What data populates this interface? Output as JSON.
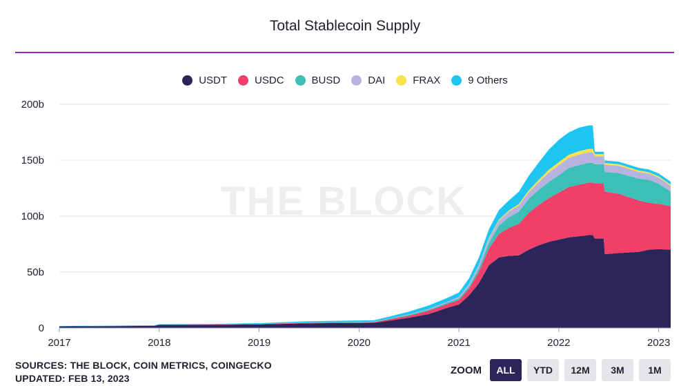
{
  "header": {
    "title": "Total Stablecoin Supply"
  },
  "watermark": "THE BLOCK",
  "footer": {
    "sources": "SOURCES: THE BLOCK, COIN METRICS, COINGECKO",
    "updated": "UPDATED: FEB 13, 2023"
  },
  "zoom": {
    "label": "ZOOM",
    "buttons": [
      "ALL",
      "YTD",
      "12M",
      "3M",
      "1M"
    ],
    "active": "ALL"
  },
  "colors": {
    "USDT": "#2b2559",
    "USDC": "#f0406a",
    "BUSD": "#3cbfb4",
    "DAI": "#b8b2e0",
    "FRAX": "#fbe14b",
    "9 Others": "#1ec5f2",
    "title_rule": "#8e24c9",
    "grid": "#e3e3e8"
  },
  "chart_data": {
    "type": "area",
    "stacked": true,
    "title": "Total Stablecoin Supply",
    "legend_position": "top-center",
    "grid": true,
    "ylim": [
      0,
      200
    ],
    "y_unit": "b",
    "y_ticks": [
      "0",
      "50b",
      "100b",
      "150b",
      "200b"
    ],
    "x_ticks": [
      "2017",
      "2018",
      "2019",
      "2020",
      "2021",
      "2022",
      "2023"
    ],
    "xlim": [
      2017.0,
      2023.12
    ],
    "x": [
      2017.0,
      2017.5,
      2017.95,
      2018.0,
      2018.5,
      2019.0,
      2019.5,
      2020.0,
      2020.15,
      2020.3,
      2020.5,
      2020.7,
      2020.9,
      2021.0,
      2021.1,
      2021.2,
      2021.3,
      2021.4,
      2021.5,
      2021.6,
      2021.7,
      2021.8,
      2021.9,
      2022.0,
      2022.1,
      2022.2,
      2022.3,
      2022.34,
      2022.36,
      2022.45,
      2022.46,
      2022.6,
      2022.8,
      2022.9,
      2023.0,
      2023.12
    ],
    "series": [
      {
        "name": "USDT",
        "values": [
          1.5,
          1.7,
          1.9,
          2.8,
          2.8,
          3.2,
          4.2,
          4.5,
          4.6,
          6.5,
          9.2,
          12.5,
          18.5,
          21,
          29,
          40,
          56,
          63,
          64.5,
          65,
          70,
          74,
          77,
          79,
          81,
          82,
          83,
          83,
          80,
          80,
          66,
          67,
          68,
          70,
          70.5,
          70
        ]
      },
      {
        "name": "USDC",
        "values": [
          0,
          0,
          0,
          0,
          0.2,
          0.3,
          0.5,
          0.6,
          0.6,
          1.2,
          1.8,
          3,
          3.4,
          4,
          6,
          10,
          15,
          21,
          25,
          28,
          33,
          36,
          39,
          42,
          45,
          46,
          47,
          47,
          49,
          49,
          56,
          53,
          46,
          42,
          40.5,
          39
        ]
      },
      {
        "name": "BUSD",
        "values": [
          0,
          0,
          0,
          0,
          0,
          0.1,
          0.2,
          0.3,
          0.3,
          0.6,
          0.7,
          0.9,
          1.2,
          1.5,
          2,
          3,
          5,
          7.5,
          9.5,
          11,
          12.5,
          13.5,
          14.5,
          15.5,
          17,
          17.5,
          17.6,
          17.6,
          17.4,
          17.4,
          17.5,
          18.5,
          19.5,
          20.5,
          18,
          13
        ]
      },
      {
        "name": "DAI",
        "values": [
          0,
          0,
          0,
          0,
          0,
          0,
          0.1,
          0.1,
          0.1,
          0.2,
          0.5,
          0.8,
          0.9,
          1.2,
          2,
          3,
          4,
          4.5,
          5,
          5.5,
          6,
          7,
          8.5,
          9,
          9,
          9.5,
          9.5,
          9.5,
          7,
          7,
          6.5,
          6.5,
          6,
          5.5,
          5.5,
          5
        ]
      },
      {
        "name": "FRAX",
        "values": [
          0,
          0,
          0,
          0,
          0,
          0,
          0,
          0,
          0,
          0,
          0,
          0,
          0,
          0.1,
          0.2,
          0.4,
          0.6,
          0.8,
          1,
          1.3,
          1.6,
          2,
          2.5,
          2.7,
          2.8,
          3,
          3,
          3,
          2,
          2,
          1.5,
          1.4,
          1.3,
          1.2,
          1.1,
          1.1
        ]
      },
      {
        "name": "9 Others",
        "values": [
          0.3,
          0.4,
          0.5,
          0.6,
          0.6,
          0.8,
          1,
          1.2,
          1.3,
          1.6,
          2.4,
          3,
          3.5,
          4,
          5,
          6.5,
          7.5,
          8.5,
          9,
          11,
          13,
          15.5,
          18,
          20,
          20,
          21,
          21,
          21,
          2.2,
          2.2,
          2.2,
          2.3,
          2.4,
          2.5,
          2.6,
          2.6
        ]
      }
    ]
  }
}
